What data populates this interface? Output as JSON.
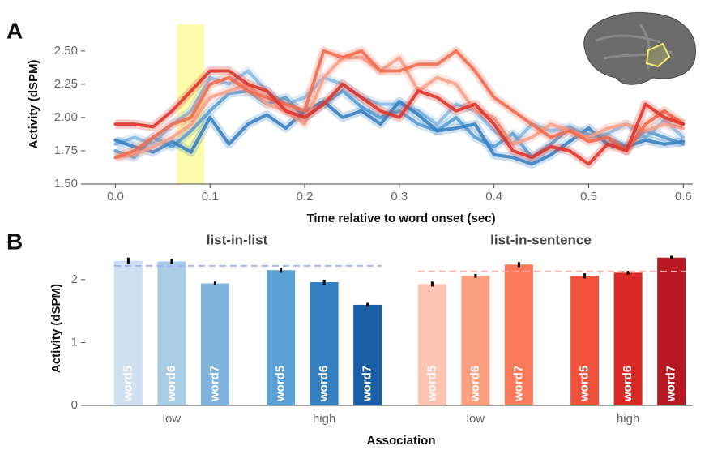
{
  "chart_data": [
    {
      "type": "line",
      "panel_label": "A",
      "y_label": "Activity (dSPM)",
      "x_label": "Time relative to word onset (sec)",
      "xlim": [
        -0.032,
        0.61
      ],
      "ylim": [
        1.5,
        2.7
      ],
      "xticks": [
        {
          "value": 0,
          "label": "0.0"
        },
        0.1,
        0.2,
        0.3,
        0.4,
        0.5,
        0.6
      ],
      "yticks": [
        {
          "value": 1.5,
          "label": "1.50"
        },
        {
          "value": 1.75,
          "label": "1.75"
        },
        {
          "value": 2,
          "label": "2.00"
        },
        {
          "value": 2.25,
          "label": "2.25"
        },
        {
          "value": 2.5,
          "label": "2.50"
        }
      ],
      "highlight": [
        0.065,
        0.094
      ],
      "highlight_color": "#fbfb9c",
      "x": [
        0,
        0.02,
        0.04,
        0.06,
        0.08,
        0.1,
        0.12,
        0.14,
        0.16,
        0.18,
        0.2,
        0.22,
        0.24,
        0.26,
        0.28,
        0.3,
        0.32,
        0.34,
        0.36,
        0.38,
        0.4,
        0.42,
        0.44,
        0.46,
        0.48,
        0.5,
        0.52,
        0.54,
        0.56,
        0.58,
        0.6
      ],
      "series": [
        {
          "color": "#8bbde3",
          "values": [
            1.8,
            1.85,
            1.8,
            1.95,
            2.05,
            2.3,
            2.25,
            2.35,
            2.2,
            2.1,
            2.15,
            2.3,
            2.25,
            2.15,
            2.1,
            2.1,
            2.05,
            1.95,
            2.1,
            2.05,
            1.9,
            1.8,
            1.95,
            1.9,
            1.93,
            1.85,
            1.88,
            1.95,
            1.85,
            1.98,
            1.85
          ]
        },
        {
          "color": "#5a9fd4",
          "values": [
            1.75,
            1.7,
            1.85,
            1.78,
            1.9,
            2.05,
            2.18,
            2.2,
            2.1,
            2.15,
            2.0,
            2.1,
            2.2,
            2.08,
            2.0,
            2.05,
            1.95,
            1.9,
            2.0,
            1.85,
            1.78,
            1.88,
            1.7,
            1.8,
            1.92,
            1.87,
            1.85,
            1.78,
            1.9,
            1.85,
            1.8
          ]
        },
        {
          "color": "#3a82c2",
          "values": [
            1.83,
            1.78,
            1.74,
            1.82,
            1.74,
            2.0,
            1.8,
            1.95,
            2.02,
            1.92,
            2.05,
            2.12,
            2.0,
            2.05,
            1.95,
            2.12,
            2.02,
            1.9,
            1.92,
            1.95,
            1.72,
            1.7,
            1.65,
            1.72,
            1.82,
            1.92,
            1.8,
            1.78,
            1.83,
            1.8,
            1.82
          ]
        },
        {
          "color": "#f7a18c",
          "values": [
            1.7,
            1.72,
            1.78,
            1.85,
            1.95,
            2.15,
            2.2,
            2.25,
            2.1,
            2.05,
            1.95,
            2.3,
            2.45,
            2.45,
            2.35,
            2.45,
            2.2,
            2.3,
            2.25,
            2.05,
            2.0,
            1.8,
            1.85,
            1.95,
            1.9,
            1.85,
            1.92,
            1.95,
            1.9,
            1.95,
            1.92
          ]
        },
        {
          "color": "#f26b50",
          "values": [
            1.7,
            1.75,
            1.85,
            1.95,
            2.0,
            2.25,
            2.3,
            2.2,
            2.15,
            2.1,
            2.05,
            2.5,
            2.45,
            2.5,
            2.35,
            2.35,
            2.4,
            2.4,
            2.5,
            2.35,
            2.15,
            2.05,
            1.95,
            1.85,
            1.9,
            1.82,
            1.85,
            1.75,
            1.95,
            2.05,
            1.95
          ]
        },
        {
          "color": "#e0352b",
          "values": [
            1.95,
            1.95,
            1.93,
            2.05,
            2.2,
            2.35,
            2.35,
            2.25,
            2.2,
            2.05,
            2.0,
            2.1,
            2.25,
            2.15,
            2.05,
            2.0,
            2.2,
            2.15,
            2.05,
            2.1,
            1.95,
            1.75,
            1.7,
            1.78,
            1.75,
            1.65,
            1.8,
            1.75,
            2.1,
            2.0,
            1.95
          ]
        }
      ]
    },
    {
      "type": "bar",
      "panel_label": "B",
      "y_label": "Activity (dSPM)",
      "x_label": "Association",
      "ylim": [
        0,
        2.45
      ],
      "yticks": [
        0,
        1,
        2
      ],
      "panels": [
        {
          "title": "list-in-list",
          "categories": [
            "low",
            "high"
          ],
          "reference": 2.22,
          "reference_color": "#aab4f2",
          "series": [
            {
              "name": "word5",
              "values": [
                2.3,
                2.15
              ],
              "errors": [
                0.05,
                0.04
              ],
              "colors": [
                "#cfe0f1",
                "#5aa0d2"
              ]
            },
            {
              "name": "word6",
              "values": [
                2.29,
                1.96
              ],
              "errors": [
                0.04,
                0.04
              ],
              "colors": [
                "#a8cde5",
                "#3580c1"
              ]
            },
            {
              "name": "word7",
              "values": [
                1.94,
                1.6
              ],
              "errors": [
                0.03,
                0.03
              ],
              "colors": [
                "#7fb4dc",
                "#1a5ea8"
              ]
            }
          ]
        },
        {
          "title": "list-in-sentence",
          "categories": [
            "low",
            "high"
          ],
          "reference": 2.13,
          "reference_color": "#f6a9a9",
          "series": [
            {
              "name": "word5",
              "values": [
                1.93,
                2.06
              ],
              "errors": [
                0.04,
                0.04
              ],
              "colors": [
                "#fcc5b3",
                "#f2523c"
              ]
            },
            {
              "name": "word6",
              "values": [
                2.06,
                2.11
              ],
              "errors": [
                0.03,
                0.03
              ],
              "colors": [
                "#fb9f81",
                "#d92a26"
              ]
            },
            {
              "name": "word7",
              "values": [
                2.24,
                2.35
              ],
              "errors": [
                0.04,
                0.03
              ],
              "colors": [
                "#f9795a",
                "#b81822"
              ]
            }
          ]
        }
      ]
    }
  ]
}
